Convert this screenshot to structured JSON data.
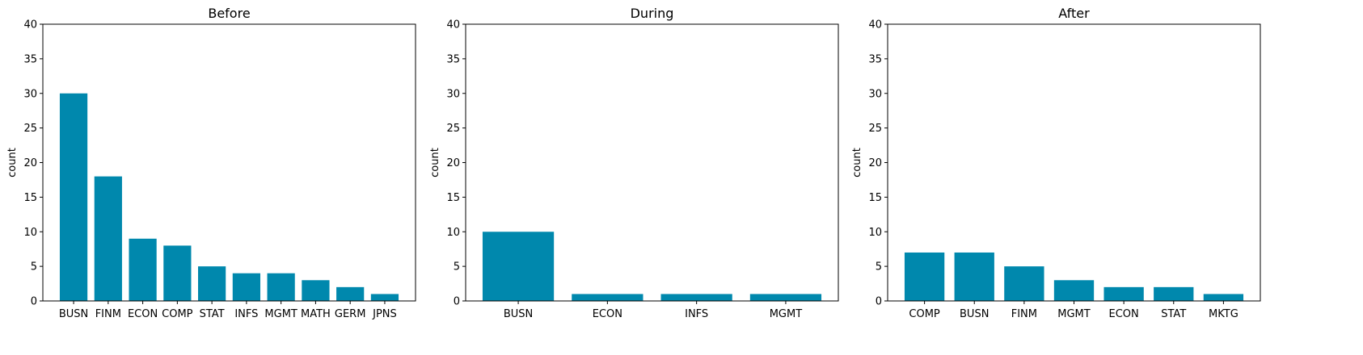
{
  "bar_color": "#0088ad",
  "chart_data": [
    {
      "type": "bar",
      "title": "Before",
      "xlabel": "",
      "ylabel": "count",
      "ylim": [
        0,
        40
      ],
      "yticks": [
        0,
        5,
        10,
        15,
        20,
        25,
        30,
        35,
        40
      ],
      "grid": false,
      "categories": [
        "BUSN",
        "FINM",
        "ECON",
        "COMP",
        "STAT",
        "INFS",
        "MGMT",
        "MATH",
        "GERM",
        "JPNS"
      ],
      "values": [
        30,
        18,
        9,
        8,
        5,
        4,
        4,
        3,
        2,
        1
      ]
    },
    {
      "type": "bar",
      "title": "During",
      "xlabel": "",
      "ylabel": "count",
      "ylim": [
        0,
        40
      ],
      "yticks": [
        0,
        5,
        10,
        15,
        20,
        25,
        30,
        35,
        40
      ],
      "grid": false,
      "categories": [
        "BUSN",
        "ECON",
        "INFS",
        "MGMT"
      ],
      "values": [
        10,
        1,
        1,
        1
      ]
    },
    {
      "type": "bar",
      "title": "After",
      "xlabel": "",
      "ylabel": "count",
      "ylim": [
        0,
        40
      ],
      "yticks": [
        0,
        5,
        10,
        15,
        20,
        25,
        30,
        35,
        40
      ],
      "grid": false,
      "categories": [
        "COMP",
        "BUSN",
        "FINM",
        "MGMT",
        "ECON",
        "STAT",
        "MKTG"
      ],
      "values": [
        7,
        7,
        5,
        3,
        2,
        2,
        1
      ]
    }
  ]
}
